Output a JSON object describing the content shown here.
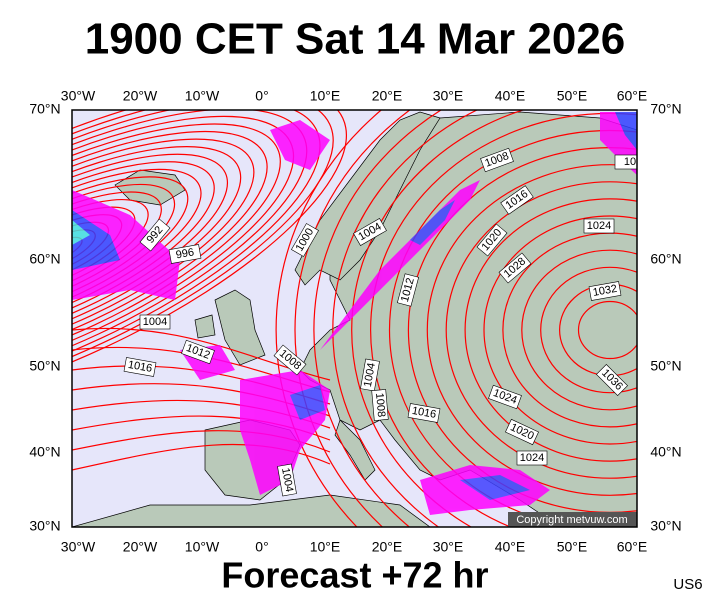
{
  "title": "1900 CET Sat 14 Mar 2026",
  "footer": "Forecast +72 hr",
  "model_code": "US6",
  "copyright": "Copyright metvuw.com",
  "longitude_labels": [
    "30°W",
    "20°W",
    "10°W",
    "0°",
    "10°E",
    "20°E",
    "30°E",
    "40°E",
    "50°E",
    "60°E"
  ],
  "latitude_labels": [
    "70°N",
    "60°N",
    "50°N",
    "40°N",
    "30°N"
  ],
  "isobar_labels": [
    "992",
    "996",
    "1000",
    "1004",
    "1008",
    "1016",
    "1024",
    "1020",
    "1028",
    "1032",
    "1012",
    "1004",
    "1012",
    "1016",
    "1008",
    "1004",
    "1008",
    "1016",
    "1036",
    "1024",
    "1020",
    "1024",
    "1004",
    "10"
  ]
}
